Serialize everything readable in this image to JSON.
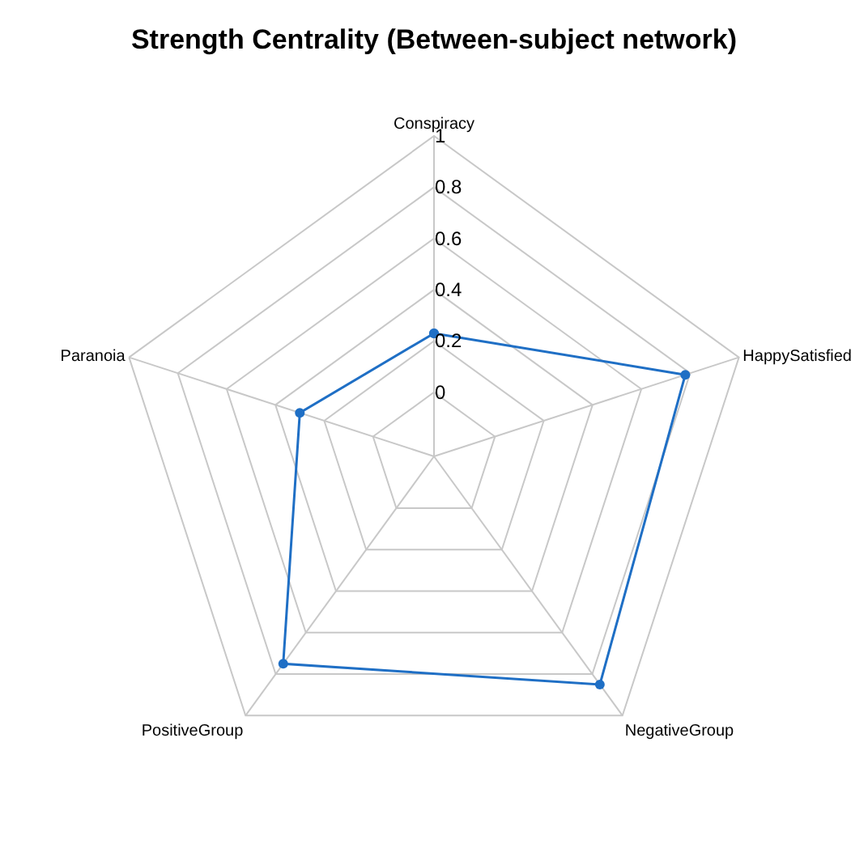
{
  "chart_data": {
    "type": "radar",
    "title": "Strength Centrality (Between-subject network)",
    "categories": [
      "Conspiracy",
      "HappySatisfied",
      "NegativeGroup",
      "PositiveGroup",
      "Paranoia"
    ],
    "series": [
      {
        "color": "#1f6fc5",
        "values": [
          0.23,
          0.78,
          0.85,
          0.75,
          0.3
        ]
      }
    ],
    "ylim": [
      -0.25,
      1
    ],
    "yticks": [
      0,
      0.2,
      0.4,
      0.6,
      0.8,
      1
    ],
    "grid": true,
    "marker": "circle",
    "line_style": "solid"
  }
}
